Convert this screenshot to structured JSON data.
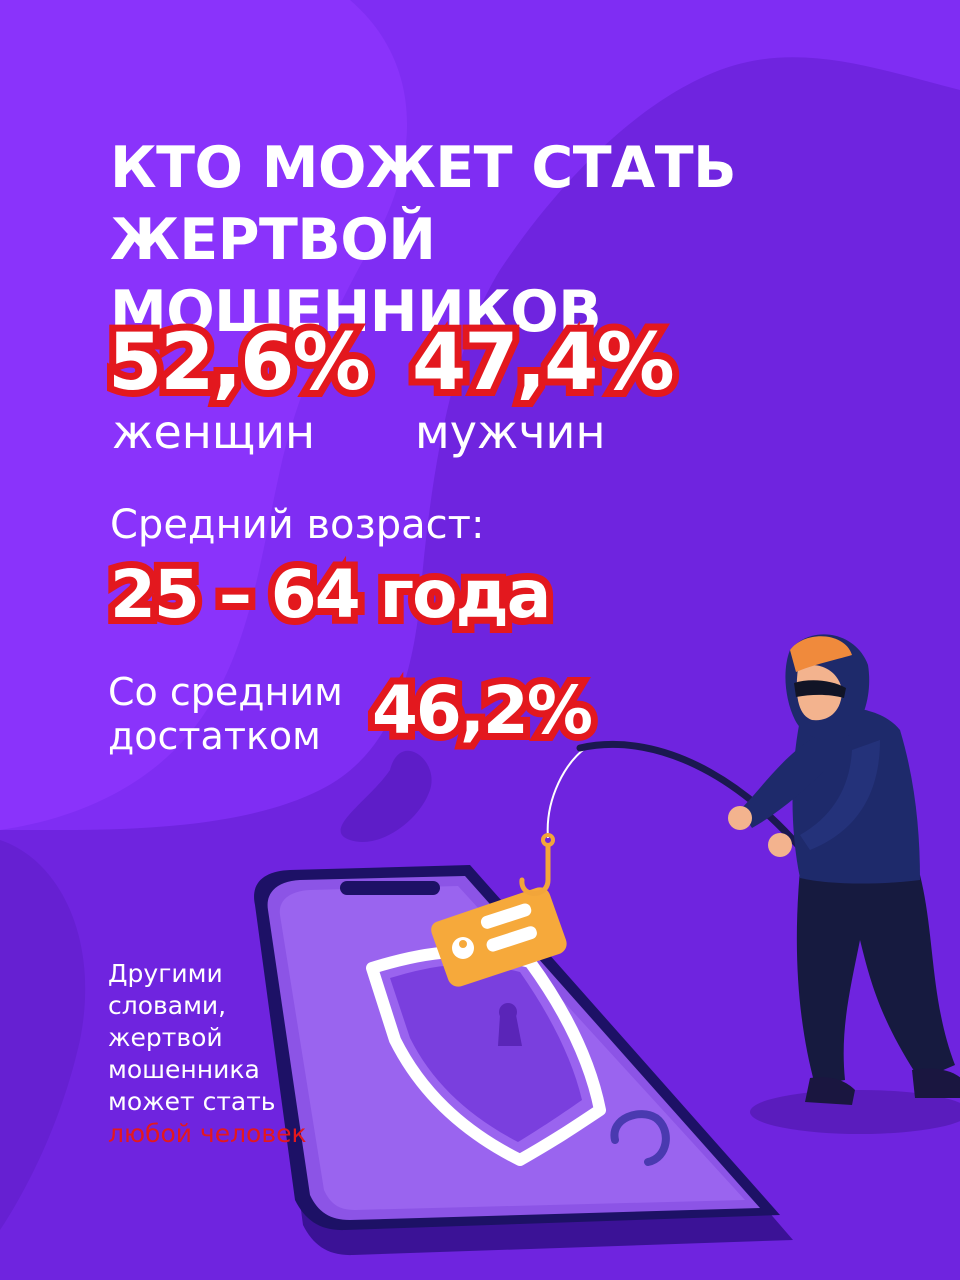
{
  "title": {
    "line1": "КТО МОЖЕТ СТАТЬ",
    "line2": "ЖЕРТВОЙ МОШЕННИКОВ"
  },
  "gender": {
    "women_value": "52,6%",
    "women_label": "женщин",
    "men_value": "47,4%",
    "men_label": "мужчин"
  },
  "age": {
    "label": "Средний возраст:",
    "value": "25 – 64 года"
  },
  "wealth": {
    "label": "Со средним достатком",
    "value": "46,2%"
  },
  "note": {
    "text": "Другими словами, жертвой мошенника может стать",
    "highlight": "любой человек"
  },
  "colors": {
    "background": "#6f24df",
    "accent_red": "#e3181e",
    "text": "#ffffff"
  },
  "icons": [
    "hacker-illustration",
    "smartphone-icon",
    "fishing-hook-icon",
    "shield-icon",
    "message-card-icon"
  ]
}
